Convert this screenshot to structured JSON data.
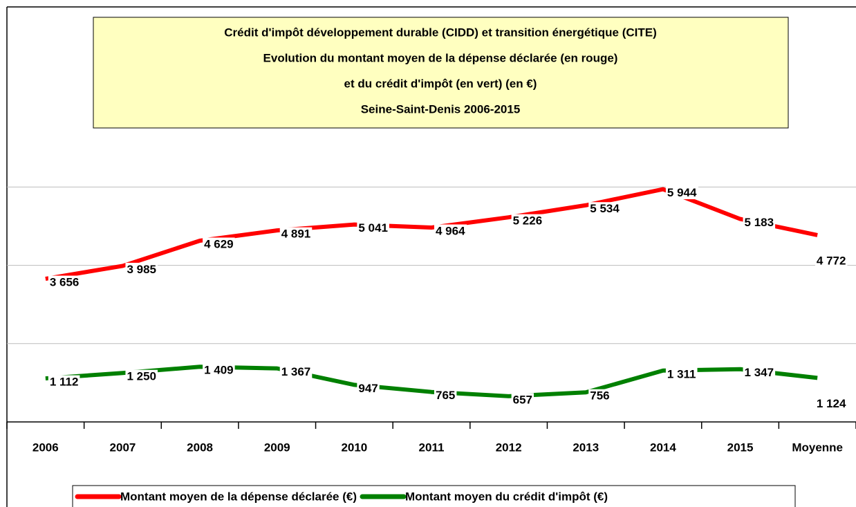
{
  "chart_data": {
    "type": "line",
    "title": [
      "Crédit d'impôt développement durable (CIDD) et transition énergétique (CITE)",
      "Evolution du montant moyen de la dépense déclarée (en rouge)",
      "et du crédit d'impôt (en vert) (en €)",
      "Seine-Saint-Denis 2006-2015"
    ],
    "categories": [
      "2006",
      "2007",
      "2008",
      "2009",
      "2010",
      "2011",
      "2012",
      "2013",
      "2014",
      "2015",
      "Moyenne"
    ],
    "series": [
      {
        "name": "Montant moyen de la dépense déclarée (€)",
        "color": "#ff0000",
        "values": [
          3656,
          3985,
          4629,
          4891,
          5041,
          4964,
          5226,
          5534,
          5944,
          5183,
          4772
        ],
        "value_labels": [
          "3 656",
          "3 985",
          "4 629",
          "4 891",
          "5 041",
          "4 964",
          "5 226",
          "5 534",
          "5 944",
          "5 183",
          "4 772"
        ]
      },
      {
        "name": "Montant moyen du crédit d'impôt (€)",
        "color": "#008000",
        "values": [
          1112,
          1250,
          1409,
          1367,
          947,
          765,
          657,
          756,
          1311,
          1347,
          1124
        ],
        "value_labels": [
          "1 112",
          "1 250",
          "1 409",
          "1 367",
          "947",
          "765",
          "657",
          "756",
          "1 311",
          "1 347",
          "1 124"
        ]
      }
    ],
    "ylim": [
      0,
      10600
    ],
    "yticks": [
      0,
      2000,
      4000,
      6000
    ],
    "grid": true,
    "legend": "bottom"
  }
}
